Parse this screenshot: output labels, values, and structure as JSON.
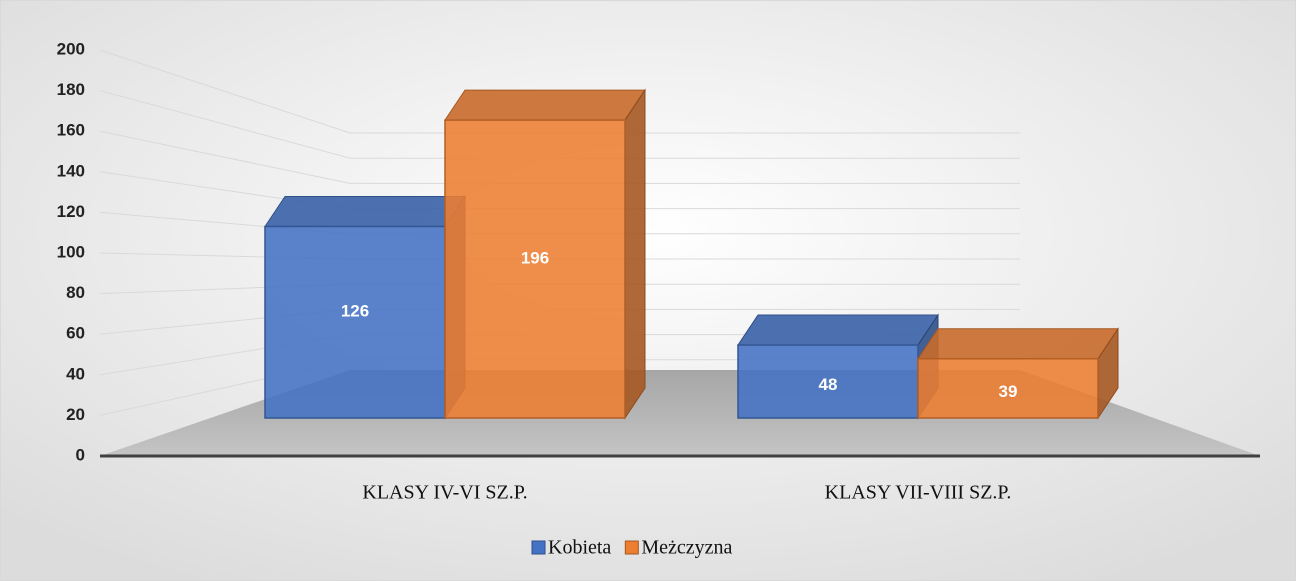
{
  "chart_data": {
    "type": "bar3d",
    "categories": [
      "KLASY IV-VI SZ.P.",
      "KLASY VII-VIII SZ.P."
    ],
    "series": [
      {
        "name": "Kobieta",
        "color": "#4472c4",
        "values": [
          126,
          48
        ]
      },
      {
        "name": "Meżczyzna",
        "color": "#ed7d31",
        "values": [
          196,
          39
        ]
      }
    ],
    "ylim": [
      0,
      200
    ],
    "yticks": [
      0,
      20,
      40,
      60,
      80,
      100,
      120,
      140,
      160,
      180,
      200
    ],
    "grid": true,
    "legend": "bottom"
  }
}
